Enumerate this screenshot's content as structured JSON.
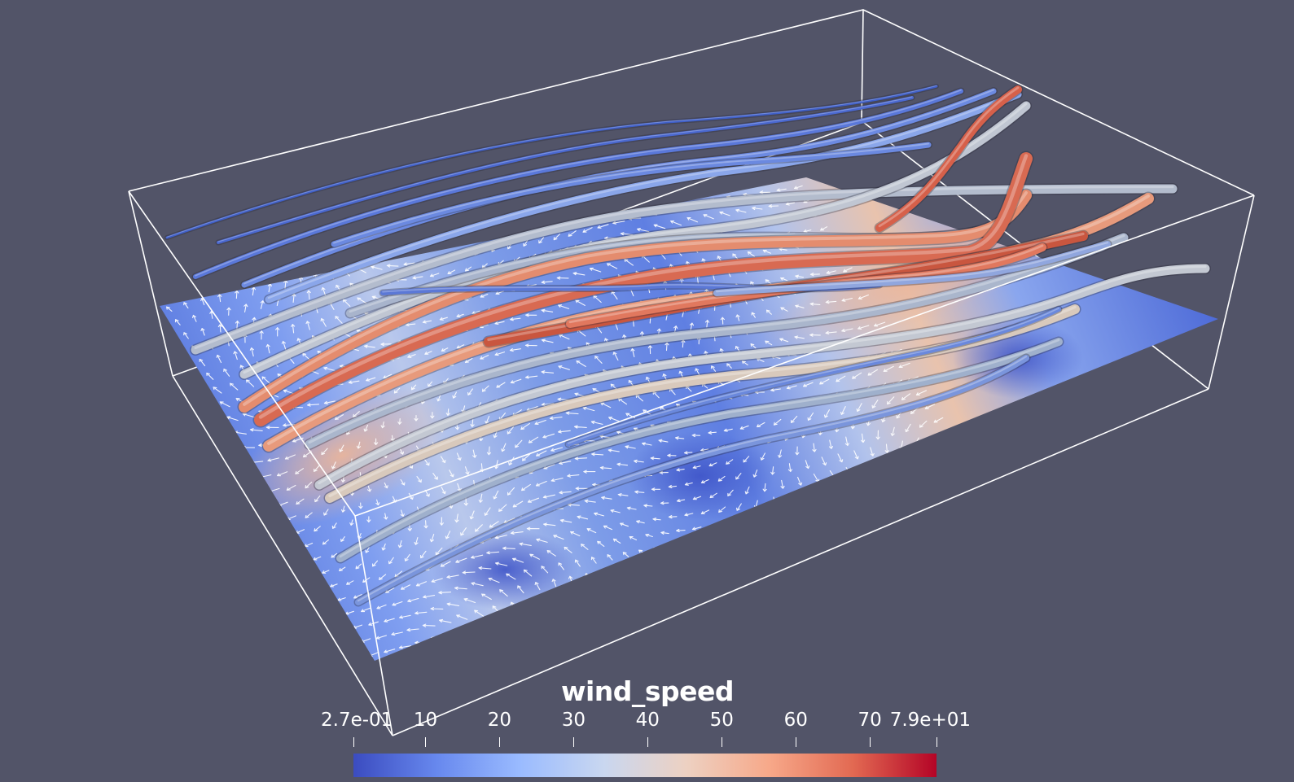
{
  "colorbar": {
    "title": "wind_speed",
    "range": [
      0.27,
      79
    ],
    "ticks": [
      {
        "value": 0.27,
        "label": "2.7e-01"
      },
      {
        "value": 10,
        "label": "10"
      },
      {
        "value": 20,
        "label": "20"
      },
      {
        "value": 30,
        "label": "30"
      },
      {
        "value": 40,
        "label": "40"
      },
      {
        "value": 50,
        "label": "50"
      },
      {
        "value": 60,
        "label": "60"
      },
      {
        "value": 70,
        "label": "70"
      },
      {
        "value": 79,
        "label": "7.9e+01"
      }
    ],
    "colormap": [
      "#3b4cc0",
      "#6788ee",
      "#9abbff",
      "#c9d7f0",
      "#edd1c2",
      "#f7a889",
      "#e26952",
      "#b40426"
    ]
  },
  "colors": {
    "background": "#525468",
    "outline": "#ffffff",
    "glyphs": "#ffffff"
  }
}
